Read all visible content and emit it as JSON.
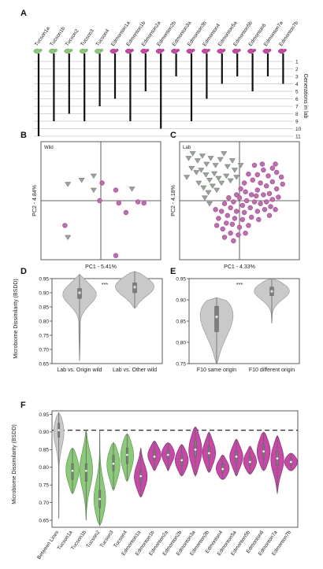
{
  "panels": {
    "A": {
      "label": "A",
      "lines": [
        "Tucson1a",
        "Tucson1b",
        "Tucson2",
        "Tucson3",
        "Tucson4",
        "Edmonton1a",
        "Edmonton1b",
        "Edmonton2a",
        "Edmonton2b",
        "Edmonton3a",
        "Edmonton3b",
        "Edmonton4",
        "Edmonton5a",
        "Edmonton5b",
        "Edmonton6",
        "Edmonton7a",
        "Edmonton7b"
      ],
      "origin": [
        "T",
        "T",
        "T",
        "T",
        "T",
        "E",
        "E",
        "E",
        "E",
        "E",
        "E",
        "E",
        "E",
        "E",
        "E",
        "E",
        "E"
      ],
      "generations_axis_label": "Generations in lab",
      "generation_ticks": [
        "1",
        "2",
        "3",
        "4",
        "5",
        "6",
        "7",
        "8",
        "9",
        "10",
        "11"
      ],
      "generations": [
        11,
        9,
        8,
        9,
        7,
        6,
        9,
        5,
        10,
        3,
        9,
        6,
        4,
        3,
        5,
        3,
        4
      ]
    },
    "B": {
      "label": "B",
      "group_label": "Wild",
      "xlabel": "PC1 - 5.41%",
      "ylabel": "PC2 - 4.84%"
    },
    "C": {
      "label": "C",
      "group_label": "Lab",
      "xlabel": "PC1 - 4.33%",
      "ylabel": "PC2 - 4.18%"
    },
    "D": {
      "label": "D",
      "significance": "***",
      "ylabel": "Microbiome Dissimilarity (BSDD)"
    },
    "E": {
      "label": "E",
      "significance": "***"
    },
    "F": {
      "label": "F",
      "ylabel": "Microbiome Dissimilarity (BSDD)"
    }
  },
  "colors": {
    "tucson": "#8cc97a",
    "tucson_stroke": "#5f9a52",
    "edmonton": "#c44aa6",
    "edmonton_stroke": "#8f2f78",
    "grey": "#c9c9c9",
    "grey_stroke": "#9a9a9a"
  },
  "chart_data": [
    {
      "type": "scatter",
      "panel": "B",
      "xlabel": "PC1 - 5.41%",
      "ylabel": "PC2 - 4.84%",
      "xlim": [
        -1,
        1
      ],
      "ylim": [
        -1,
        1
      ],
      "series": [
        {
          "name": "",
          "marker": "triangle",
          "points": [
            [
              -0.55,
              0.28
            ],
            [
              -0.32,
              0.35
            ],
            [
              -0.12,
              0.42
            ],
            [
              0.52,
              0.2
            ],
            [
              -0.55,
              -0.62
            ],
            [
              -0.12,
              0.18
            ]
          ]
        },
        {
          "name": "",
          "marker": "circle",
          "points": [
            [
              0.02,
              0.3
            ],
            [
              0.25,
              0.18
            ],
            [
              -0.02,
              0.0
            ],
            [
              0.3,
              -0.04
            ],
            [
              0.62,
              -0.02
            ],
            [
              0.72,
              -0.04
            ],
            [
              0.42,
              -0.2
            ],
            [
              -0.6,
              -0.42
            ],
            [
              0.25,
              -0.93
            ]
          ]
        }
      ]
    },
    {
      "type": "scatter",
      "panel": "C",
      "xlabel": "PC1 - 4.33%",
      "ylabel": "PC2 - 4.18%",
      "xlim": [
        -1,
        1
      ],
      "ylim": [
        -1,
        1
      ],
      "series": [
        {
          "name": "",
          "marker": "triangle",
          "points": [
            [
              -0.85,
              0.72
            ],
            [
              -0.78,
              0.8
            ],
            [
              -0.7,
              0.68
            ],
            [
              -0.62,
              0.76
            ],
            [
              -0.55,
              0.62
            ],
            [
              -0.48,
              0.72
            ],
            [
              -0.4,
              0.6
            ],
            [
              -0.32,
              0.7
            ],
            [
              -0.26,
              0.8
            ],
            [
              -0.2,
              0.58
            ],
            [
              -0.12,
              0.68
            ],
            [
              -0.8,
              0.55
            ],
            [
              -0.72,
              0.48
            ],
            [
              -0.64,
              0.52
            ],
            [
              -0.56,
              0.44
            ],
            [
              -0.5,
              0.35
            ],
            [
              -0.42,
              0.46
            ],
            [
              -0.35,
              0.38
            ],
            [
              -0.3,
              0.3
            ],
            [
              -0.22,
              0.42
            ],
            [
              -0.15,
              0.34
            ],
            [
              -0.08,
              0.52
            ],
            [
              -0.6,
              0.22
            ],
            [
              -0.52,
              0.14
            ],
            [
              -0.45,
              0.25
            ],
            [
              -0.38,
              0.18
            ],
            [
              -0.68,
              0.3
            ],
            [
              -0.88,
              0.4
            ],
            [
              -0.05,
              0.4
            ],
            [
              0.02,
              0.6
            ],
            [
              -0.5,
              -0.05
            ],
            [
              -0.58,
              0.05
            ]
          ]
        },
        {
          "name": "",
          "marker": "circle",
          "points": [
            [
              0.55,
              0.55
            ],
            [
              0.62,
              0.48
            ],
            [
              0.7,
              0.4
            ],
            [
              0.48,
              0.42
            ],
            [
              0.4,
              0.52
            ],
            [
              0.3,
              0.44
            ],
            [
              0.22,
              0.35
            ],
            [
              0.15,
              0.45
            ],
            [
              0.08,
              0.3
            ],
            [
              0.35,
              0.3
            ],
            [
              0.45,
              0.25
            ],
            [
              0.55,
              0.32
            ],
            [
              0.62,
              0.2
            ],
            [
              0.5,
              0.12
            ],
            [
              0.4,
              0.1
            ],
            [
              0.3,
              0.18
            ],
            [
              0.2,
              0.1
            ],
            [
              0.1,
              0.15
            ],
            [
              0.02,
              0.2
            ],
            [
              -0.05,
              0.1
            ],
            [
              0.12,
              0.0
            ],
            [
              0.25,
              -0.02
            ],
            [
              0.35,
              -0.05
            ],
            [
              0.45,
              -0.02
            ],
            [
              0.55,
              0.02
            ],
            [
              0.65,
              0.06
            ],
            [
              0.05,
              -0.08
            ],
            [
              -0.1,
              -0.02
            ],
            [
              -0.18,
              0.05
            ],
            [
              0.18,
              -0.12
            ],
            [
              0.3,
              -0.18
            ],
            [
              0.42,
              -0.15
            ],
            [
              0.52,
              -0.1
            ],
            [
              0.08,
              -0.2
            ],
            [
              -0.05,
              -0.18
            ],
            [
              -0.15,
              -0.12
            ],
            [
              -0.25,
              -0.05
            ],
            [
              -0.3,
              -0.18
            ],
            [
              -0.2,
              -0.25
            ],
            [
              -0.08,
              -0.3
            ],
            [
              0.05,
              -0.32
            ],
            [
              0.2,
              -0.28
            ],
            [
              0.32,
              -0.32
            ],
            [
              0.15,
              -0.42
            ],
            [
              0.0,
              -0.45
            ],
            [
              -0.12,
              -0.4
            ],
            [
              -0.22,
              -0.38
            ],
            [
              -0.35,
              -0.3
            ],
            [
              -0.28,
              -0.48
            ],
            [
              -0.15,
              -0.55
            ],
            [
              -0.02,
              -0.58
            ],
            [
              0.1,
              -0.55
            ],
            [
              -0.38,
              -0.42
            ],
            [
              -0.1,
              -0.68
            ],
            [
              -0.25,
              -0.62
            ],
            [
              0.6,
              0.62
            ],
            [
              0.72,
              0.28
            ],
            [
              0.38,
              0.62
            ],
            [
              0.25,
              0.6
            ],
            [
              0.5,
              -0.25
            ],
            [
              -0.4,
              -0.15
            ],
            [
              0.6,
              -0.15
            ],
            [
              0.0,
              0.05
            ],
            [
              0.28,
              0.08
            ]
          ]
        }
      ]
    },
    {
      "type": "violin",
      "panel": "D",
      "ylabel": "Microbiome Dissimilarity (BSDD)",
      "ylim": [
        0.65,
        0.95
      ],
      "yticks": [
        0.65,
        0.7,
        0.75,
        0.8,
        0.85,
        0.9,
        0.95
      ],
      "categories": [
        "Lab vs. Origin wild",
        "Lab vs. Other wild"
      ],
      "series": [
        {
          "name": "Lab vs. Origin wild",
          "min": 0.66,
          "q1": 0.88,
          "median": 0.9,
          "q3": 0.915,
          "max": 0.965,
          "mode": 0.9
        },
        {
          "name": "Lab vs. Other wild",
          "min": 0.845,
          "q1": 0.9,
          "median": 0.92,
          "q3": 0.935,
          "max": 0.975,
          "mode": 0.925
        }
      ]
    },
    {
      "type": "violin",
      "panel": "E",
      "ylim": [
        0.75,
        0.95
      ],
      "yticks": [
        0.75,
        0.8,
        0.85,
        0.9,
        0.95
      ],
      "categories": [
        "F10 same origin",
        "F10 different origin"
      ],
      "series": [
        {
          "name": "F10 same origin",
          "min": 0.75,
          "q1": 0.825,
          "median": 0.86,
          "q3": 0.885,
          "max": 0.905,
          "mode": 0.89
        },
        {
          "name": "F10 different origin",
          "min": 0.845,
          "q1": 0.91,
          "median": 0.92,
          "q3": 0.93,
          "max": 0.95,
          "mode": 0.925
        }
      ]
    },
    {
      "type": "violin",
      "panel": "F",
      "ylabel": "Microbiome Dissimilarity (BSDD)",
      "ylim": [
        0.63,
        0.96
      ],
      "yticks": [
        0.65,
        0.7,
        0.75,
        0.8,
        0.85,
        0.9,
        0.95
      ],
      "reference_line": 0.905,
      "categories": [
        "Between Lines",
        "Tucson1a",
        "Tucson1b",
        "Tucson2",
        "Tucson3",
        "Tucson4",
        "Edmonton1a",
        "Edmonton1b",
        "Edmonton2a",
        "Edmonton2b",
        "Edmonton3a",
        "Edmonton3b",
        "Edmonton4",
        "Edmonton5a",
        "Edmonton5b",
        "Edmonton6",
        "Edmonton7a",
        "Edmonton7b"
      ],
      "series": [
        {
          "name": "Between Lines",
          "group": "grey",
          "min": 0.655,
          "q1": 0.885,
          "median": 0.905,
          "q3": 0.925,
          "max": 0.955,
          "mode": 0.91
        },
        {
          "name": "Tucson1a",
          "group": "T",
          "min": 0.725,
          "q1": 0.765,
          "median": 0.79,
          "q3": 0.81,
          "max": 0.855,
          "mode": 0.795
        },
        {
          "name": "Tucson1b",
          "group": "T",
          "min": 0.65,
          "q1": 0.76,
          "median": 0.79,
          "q3": 0.81,
          "max": 0.905,
          "mode": 0.795
        },
        {
          "name": "Tucson2",
          "group": "T",
          "min": 0.635,
          "q1": 0.685,
          "median": 0.71,
          "q3": 0.735,
          "max": 0.905,
          "mode": 0.7
        },
        {
          "name": "Tucson3",
          "group": "T",
          "min": 0.735,
          "q1": 0.79,
          "median": 0.81,
          "q3": 0.835,
          "max": 0.87,
          "mode": 0.81
        },
        {
          "name": "Tucson4",
          "group": "T",
          "min": 0.76,
          "q1": 0.81,
          "median": 0.835,
          "q3": 0.855,
          "max": 0.895,
          "mode": 0.835
        },
        {
          "name": "Edmonton1a",
          "group": "E",
          "min": 0.715,
          "q1": 0.755,
          "median": 0.775,
          "q3": 0.79,
          "max": 0.855,
          "mode": 0.77
        },
        {
          "name": "Edmonton1b",
          "group": "E",
          "min": 0.79,
          "q1": 0.82,
          "median": 0.83,
          "q3": 0.845,
          "max": 0.875,
          "mode": 0.835
        },
        {
          "name": "Edmonton2a",
          "group": "E",
          "min": 0.79,
          "q1": 0.825,
          "median": 0.835,
          "q3": 0.85,
          "max": 0.87,
          "mode": 0.84
        },
        {
          "name": "Edmonton2b",
          "group": "E",
          "min": 0.775,
          "q1": 0.805,
          "median": 0.82,
          "q3": 0.835,
          "max": 0.865,
          "mode": 0.82
        },
        {
          "name": "Edmonton3a",
          "group": "E",
          "min": 0.775,
          "q1": 0.83,
          "median": 0.85,
          "q3": 0.875,
          "max": 0.915,
          "mode": 0.85
        },
        {
          "name": "Edmonton3b",
          "group": "E",
          "min": 0.785,
          "q1": 0.825,
          "median": 0.84,
          "q3": 0.86,
          "max": 0.9,
          "mode": 0.84
        },
        {
          "name": "Edmonton4",
          "group": "E",
          "min": 0.765,
          "q1": 0.785,
          "median": 0.795,
          "q3": 0.81,
          "max": 0.835,
          "mode": 0.795
        },
        {
          "name": "Edmonton5a",
          "group": "E",
          "min": 0.775,
          "q1": 0.815,
          "median": 0.83,
          "q3": 0.845,
          "max": 0.88,
          "mode": 0.83
        },
        {
          "name": "Edmonton5b",
          "group": "E",
          "min": 0.78,
          "q1": 0.805,
          "median": 0.815,
          "q3": 0.83,
          "max": 0.86,
          "mode": 0.815
        },
        {
          "name": "Edmonton6",
          "group": "E",
          "min": 0.79,
          "q1": 0.825,
          "median": 0.845,
          "q3": 0.865,
          "max": 0.9,
          "mode": 0.845
        },
        {
          "name": "Edmonton7a",
          "group": "E",
          "min": 0.725,
          "q1": 0.805,
          "median": 0.825,
          "q3": 0.845,
          "max": 0.89,
          "mode": 0.825
        },
        {
          "name": "Edmonton7b",
          "group": "E",
          "min": 0.79,
          "q1": 0.805,
          "median": 0.815,
          "q3": 0.825,
          "max": 0.84,
          "mode": 0.815
        }
      ]
    }
  ]
}
